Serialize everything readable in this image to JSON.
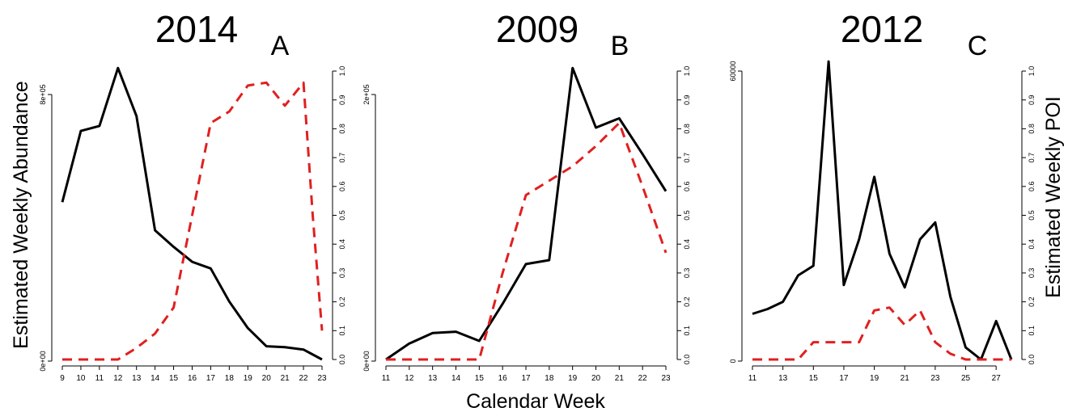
{
  "chart_data": [
    {
      "type": "line",
      "title": "2014",
      "panel_label": "A",
      "x": [
        9,
        10,
        11,
        12,
        13,
        14,
        15,
        16,
        17,
        18,
        19,
        20,
        21,
        22,
        23
      ],
      "x_ticks": [
        "9",
        "10",
        "11",
        "12",
        "13",
        "14",
        "15",
        "16",
        "17",
        "18",
        "19",
        "20",
        "21",
        "22",
        "23"
      ],
      "xlim": [
        9,
        23
      ],
      "ylim_left": [
        0,
        800000
      ],
      "y_ticks_left": [
        "0e+00",
        "8e+05"
      ],
      "ylim_right": [
        0,
        1
      ],
      "y_ticks_right": [
        "0.0",
        "0.1",
        "0.2",
        "0.3",
        "0.4",
        "0.5",
        "0.6",
        "0.7",
        "0.8",
        "0.9",
        "1.0"
      ],
      "series": [
        {
          "axis": "left",
          "style": "solid",
          "color": "#000000",
          "points": [
            [
              9,
              475000
            ],
            [
              10,
              690000
            ],
            [
              11,
              705000
            ],
            [
              12,
              880000
            ],
            [
              13,
              735000
            ],
            [
              14,
              390000
            ],
            [
              15,
              340000
            ],
            [
              16,
              295000
            ],
            [
              17,
              275000
            ],
            [
              18,
              175000
            ],
            [
              19,
              95000
            ],
            [
              20,
              40000
            ],
            [
              21,
              37000
            ],
            [
              22,
              30000
            ],
            [
              23,
              0
            ]
          ]
        },
        {
          "axis": "right",
          "style": "dashed",
          "color": "#e02020",
          "points": [
            [
              9,
              0
            ],
            [
              10,
              0
            ],
            [
              11,
              0
            ],
            [
              12,
              0
            ],
            [
              13,
              0.04
            ],
            [
              14,
              0.09
            ],
            [
              15,
              0.18
            ],
            [
              16,
              0.5
            ],
            [
              17,
              0.82
            ],
            [
              18,
              0.86
            ],
            [
              19,
              0.95
            ],
            [
              20,
              0.96
            ],
            [
              21,
              0.88
            ],
            [
              22,
              0.96
            ],
            [
              22.5,
              0.5
            ],
            [
              23,
              0.1
            ]
          ]
        }
      ]
    },
    {
      "type": "line",
      "title": "2009",
      "panel_label": "B",
      "x": [
        11,
        12,
        13,
        14,
        15,
        16,
        17,
        18,
        19,
        20,
        21,
        22,
        23
      ],
      "x_ticks": [
        "11",
        "12",
        "13",
        "14",
        "15",
        "16",
        "17",
        "18",
        "19",
        "20",
        "21",
        "22",
        "23"
      ],
      "xlim": [
        11,
        23
      ],
      "ylim_left": [
        0,
        200000
      ],
      "y_ticks_left": [
        "0e+00",
        "2e+05"
      ],
      "ylim_right": [
        0,
        1
      ],
      "y_ticks_right": [
        "0.0",
        "0.1",
        "0.2",
        "0.3",
        "0.4",
        "0.5",
        "0.6",
        "0.7",
        "0.8",
        "0.9",
        "1.0"
      ],
      "series": [
        {
          "axis": "left",
          "style": "solid",
          "color": "#000000",
          "points": [
            [
              11,
              0
            ],
            [
              12,
              12000
            ],
            [
              13,
              20000
            ],
            [
              14,
              21000
            ],
            [
              15,
              14000
            ],
            [
              16,
              42000
            ],
            [
              17,
              72000
            ],
            [
              18,
              75000
            ],
            [
              19,
              220000
            ],
            [
              20,
              175000
            ],
            [
              21,
              182000
            ],
            [
              22,
              155000
            ],
            [
              23,
              127000
            ]
          ]
        },
        {
          "axis": "right",
          "style": "dashed",
          "color": "#e02020",
          "points": [
            [
              11,
              0
            ],
            [
              12,
              0
            ],
            [
              13,
              0
            ],
            [
              14,
              0
            ],
            [
              15,
              0
            ],
            [
              16,
              0.3
            ],
            [
              17,
              0.57
            ],
            [
              18,
              0.62
            ],
            [
              19,
              0.67
            ],
            [
              20,
              0.74
            ],
            [
              21,
              0.82
            ],
            [
              22,
              0.6
            ],
            [
              23,
              0.37
            ]
          ]
        }
      ]
    },
    {
      "type": "line",
      "title": "2012",
      "panel_label": "C",
      "x": [
        11,
        12,
        13,
        14,
        15,
        16,
        17,
        18,
        19,
        20,
        21,
        22,
        23,
        24,
        25,
        26,
        27,
        28
      ],
      "x_ticks": [
        "11",
        "13",
        "15",
        "17",
        "19",
        "21",
        "23",
        "25",
        "27"
      ],
      "xlim": [
        11,
        28
      ],
      "ylim_left": [
        0,
        60000
      ],
      "y_ticks_left": [
        "0",
        "60000"
      ],
      "ylim_right": [
        0,
        1
      ],
      "y_ticks_right": [
        "0.0",
        "0.1",
        "0.2",
        "0.3",
        "0.4",
        "0.5",
        "0.6",
        "0.7",
        "0.8",
        "0.9",
        "1.0"
      ],
      "series": [
        {
          "axis": "left",
          "style": "solid",
          "color": "#000000",
          "points": [
            [
              11,
              9500
            ],
            [
              12,
              10500
            ],
            [
              13,
              12000
            ],
            [
              14,
              17500
            ],
            [
              15,
              19500
            ],
            [
              16,
              62000
            ],
            [
              17,
              15500
            ],
            [
              18,
              25000
            ],
            [
              19,
              38000
            ],
            [
              20,
              22000
            ],
            [
              21,
              15000
            ],
            [
              22,
              25000
            ],
            [
              23,
              28500
            ],
            [
              24,
              13000
            ],
            [
              25,
              2500
            ],
            [
              26,
              0
            ],
            [
              27,
              8000
            ],
            [
              28,
              0
            ]
          ]
        },
        {
          "axis": "right",
          "style": "dashed",
          "color": "#e02020",
          "points": [
            [
              11,
              0
            ],
            [
              12,
              0
            ],
            [
              13,
              0
            ],
            [
              14,
              0
            ],
            [
              15,
              0.06
            ],
            [
              16,
              0.06
            ],
            [
              17,
              0.06
            ],
            [
              18,
              0.06
            ],
            [
              19,
              0.17
            ],
            [
              20,
              0.18
            ],
            [
              21,
              0.12
            ],
            [
              22,
              0.17
            ],
            [
              23,
              0.06
            ],
            [
              24,
              0.02
            ],
            [
              25,
              0
            ],
            [
              26,
              0
            ],
            [
              27,
              0
            ],
            [
              28,
              0
            ]
          ]
        }
      ]
    }
  ],
  "labels": {
    "y_left": "Estimated Weekly Abundance",
    "y_right": "Estimated Weekly POI",
    "x": "Calendar Week"
  }
}
